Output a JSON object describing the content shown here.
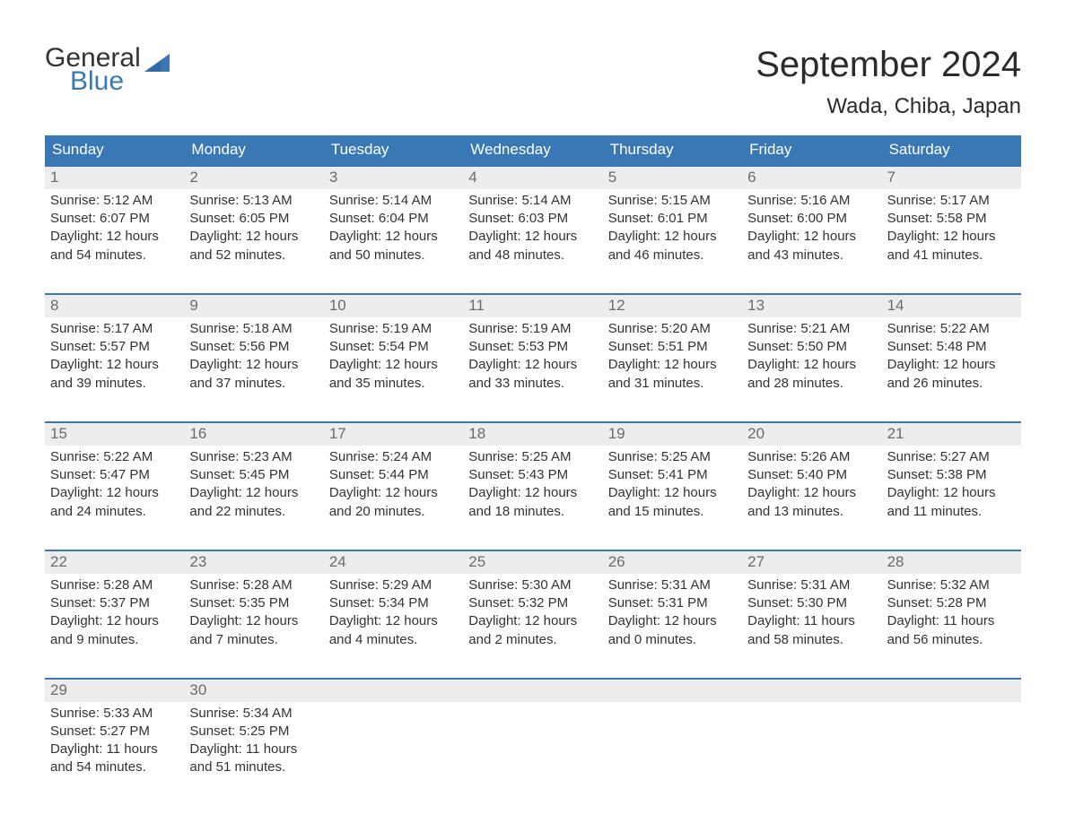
{
  "logo": {
    "line1": "General",
    "line2": "Blue",
    "text_color": "#333333",
    "accent_color": "#3a78b5"
  },
  "title": "September 2024",
  "location": "Wada, Chiba, Japan",
  "colors": {
    "header_bg": "#3a78b5",
    "header_text": "#ffffff",
    "daynum_bg": "#ededed",
    "daynum_text": "#6b6b6b",
    "body_text": "#333333",
    "rule": "#3a78b5",
    "page_bg": "#ffffff"
  },
  "weekdays": [
    "Sunday",
    "Monday",
    "Tuesday",
    "Wednesday",
    "Thursday",
    "Friday",
    "Saturday"
  ],
  "weeks": [
    [
      {
        "day": "1",
        "sunrise": "Sunrise: 5:12 AM",
        "sunset": "Sunset: 6:07 PM",
        "daylight": "Daylight: 12 hours and 54 minutes."
      },
      {
        "day": "2",
        "sunrise": "Sunrise: 5:13 AM",
        "sunset": "Sunset: 6:05 PM",
        "daylight": "Daylight: 12 hours and 52 minutes."
      },
      {
        "day": "3",
        "sunrise": "Sunrise: 5:14 AM",
        "sunset": "Sunset: 6:04 PM",
        "daylight": "Daylight: 12 hours and 50 minutes."
      },
      {
        "day": "4",
        "sunrise": "Sunrise: 5:14 AM",
        "sunset": "Sunset: 6:03 PM",
        "daylight": "Daylight: 12 hours and 48 minutes."
      },
      {
        "day": "5",
        "sunrise": "Sunrise: 5:15 AM",
        "sunset": "Sunset: 6:01 PM",
        "daylight": "Daylight: 12 hours and 46 minutes."
      },
      {
        "day": "6",
        "sunrise": "Sunrise: 5:16 AM",
        "sunset": "Sunset: 6:00 PM",
        "daylight": "Daylight: 12 hours and 43 minutes."
      },
      {
        "day": "7",
        "sunrise": "Sunrise: 5:17 AM",
        "sunset": "Sunset: 5:58 PM",
        "daylight": "Daylight: 12 hours and 41 minutes."
      }
    ],
    [
      {
        "day": "8",
        "sunrise": "Sunrise: 5:17 AM",
        "sunset": "Sunset: 5:57 PM",
        "daylight": "Daylight: 12 hours and 39 minutes."
      },
      {
        "day": "9",
        "sunrise": "Sunrise: 5:18 AM",
        "sunset": "Sunset: 5:56 PM",
        "daylight": "Daylight: 12 hours and 37 minutes."
      },
      {
        "day": "10",
        "sunrise": "Sunrise: 5:19 AM",
        "sunset": "Sunset: 5:54 PM",
        "daylight": "Daylight: 12 hours and 35 minutes."
      },
      {
        "day": "11",
        "sunrise": "Sunrise: 5:19 AM",
        "sunset": "Sunset: 5:53 PM",
        "daylight": "Daylight: 12 hours and 33 minutes."
      },
      {
        "day": "12",
        "sunrise": "Sunrise: 5:20 AM",
        "sunset": "Sunset: 5:51 PM",
        "daylight": "Daylight: 12 hours and 31 minutes."
      },
      {
        "day": "13",
        "sunrise": "Sunrise: 5:21 AM",
        "sunset": "Sunset: 5:50 PM",
        "daylight": "Daylight: 12 hours and 28 minutes."
      },
      {
        "day": "14",
        "sunrise": "Sunrise: 5:22 AM",
        "sunset": "Sunset: 5:48 PM",
        "daylight": "Daylight: 12 hours and 26 minutes."
      }
    ],
    [
      {
        "day": "15",
        "sunrise": "Sunrise: 5:22 AM",
        "sunset": "Sunset: 5:47 PM",
        "daylight": "Daylight: 12 hours and 24 minutes."
      },
      {
        "day": "16",
        "sunrise": "Sunrise: 5:23 AM",
        "sunset": "Sunset: 5:45 PM",
        "daylight": "Daylight: 12 hours and 22 minutes."
      },
      {
        "day": "17",
        "sunrise": "Sunrise: 5:24 AM",
        "sunset": "Sunset: 5:44 PM",
        "daylight": "Daylight: 12 hours and 20 minutes."
      },
      {
        "day": "18",
        "sunrise": "Sunrise: 5:25 AM",
        "sunset": "Sunset: 5:43 PM",
        "daylight": "Daylight: 12 hours and 18 minutes."
      },
      {
        "day": "19",
        "sunrise": "Sunrise: 5:25 AM",
        "sunset": "Sunset: 5:41 PM",
        "daylight": "Daylight: 12 hours and 15 minutes."
      },
      {
        "day": "20",
        "sunrise": "Sunrise: 5:26 AM",
        "sunset": "Sunset: 5:40 PM",
        "daylight": "Daylight: 12 hours and 13 minutes."
      },
      {
        "day": "21",
        "sunrise": "Sunrise: 5:27 AM",
        "sunset": "Sunset: 5:38 PM",
        "daylight": "Daylight: 12 hours and 11 minutes."
      }
    ],
    [
      {
        "day": "22",
        "sunrise": "Sunrise: 5:28 AM",
        "sunset": "Sunset: 5:37 PM",
        "daylight": "Daylight: 12 hours and 9 minutes."
      },
      {
        "day": "23",
        "sunrise": "Sunrise: 5:28 AM",
        "sunset": "Sunset: 5:35 PM",
        "daylight": "Daylight: 12 hours and 7 minutes."
      },
      {
        "day": "24",
        "sunrise": "Sunrise: 5:29 AM",
        "sunset": "Sunset: 5:34 PM",
        "daylight": "Daylight: 12 hours and 4 minutes."
      },
      {
        "day": "25",
        "sunrise": "Sunrise: 5:30 AM",
        "sunset": "Sunset: 5:32 PM",
        "daylight": "Daylight: 12 hours and 2 minutes."
      },
      {
        "day": "26",
        "sunrise": "Sunrise: 5:31 AM",
        "sunset": "Sunset: 5:31 PM",
        "daylight": "Daylight: 12 hours and 0 minutes."
      },
      {
        "day": "27",
        "sunrise": "Sunrise: 5:31 AM",
        "sunset": "Sunset: 5:30 PM",
        "daylight": "Daylight: 11 hours and 58 minutes."
      },
      {
        "day": "28",
        "sunrise": "Sunrise: 5:32 AM",
        "sunset": "Sunset: 5:28 PM",
        "daylight": "Daylight: 11 hours and 56 minutes."
      }
    ],
    [
      {
        "day": "29",
        "sunrise": "Sunrise: 5:33 AM",
        "sunset": "Sunset: 5:27 PM",
        "daylight": "Daylight: 11 hours and 54 minutes."
      },
      {
        "day": "30",
        "sunrise": "Sunrise: 5:34 AM",
        "sunset": "Sunset: 5:25 PM",
        "daylight": "Daylight: 11 hours and 51 minutes."
      },
      null,
      null,
      null,
      null,
      null
    ]
  ]
}
